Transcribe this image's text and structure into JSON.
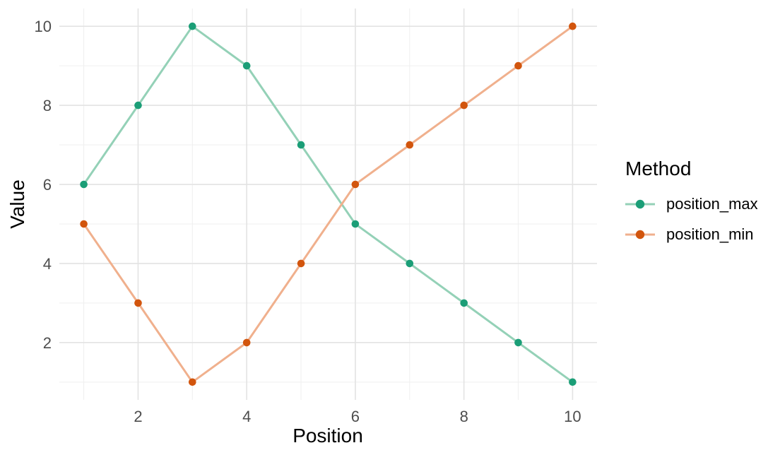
{
  "chart_data": {
    "type": "line",
    "title": "",
    "xlabel": "Position",
    "ylabel": "Value",
    "x": [
      1,
      2,
      3,
      4,
      5,
      6,
      7,
      8,
      9,
      10
    ],
    "series": [
      {
        "name": "position_max",
        "values": [
          6,
          8,
          10,
          9,
          7,
          5,
          4,
          3,
          2,
          1
        ],
        "point_color": "#1b9e77",
        "line_color": "#94d1b7"
      },
      {
        "name": "position_min",
        "values": [
          5,
          3,
          1,
          2,
          4,
          6,
          7,
          8,
          9,
          10
        ],
        "point_color": "#d2550d",
        "line_color": "#f0b08d"
      }
    ],
    "x_ticks": [
      2,
      4,
      6,
      8,
      10
    ],
    "y_ticks": [
      2,
      4,
      6,
      8,
      10
    ],
    "x_minor": [
      1,
      3,
      5,
      7,
      9
    ],
    "y_minor": [
      1,
      3,
      5,
      7,
      9
    ],
    "xlim": [
      0.55,
      10.45
    ],
    "ylim": [
      0.55,
      10.45
    ],
    "grid": true,
    "legend": {
      "title": "Method",
      "position": "right",
      "entries": [
        "position_max",
        "position_min"
      ]
    },
    "style": {
      "background_color": "#ffffff",
      "major_grid_color": "#e3e3e3",
      "minor_grid_color": "#efefef",
      "tick_label_color": "#4d4d4d",
      "axis_title_color": "#000000"
    }
  }
}
